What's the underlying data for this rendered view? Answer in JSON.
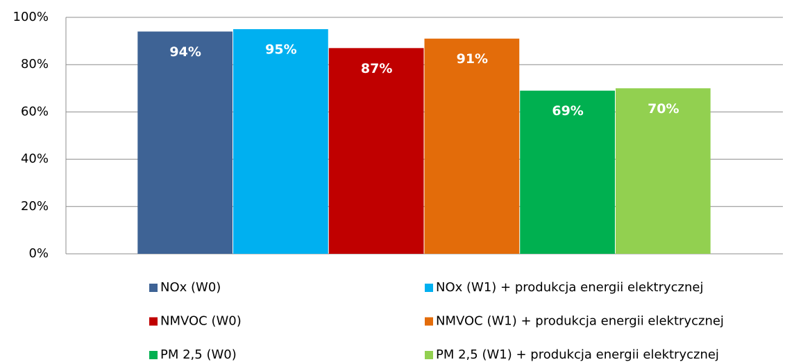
{
  "chart_data": {
    "type": "bar",
    "categories": [
      null
    ],
    "series": [
      {
        "name": "NOx (W0)",
        "color": "#3e6395",
        "values": [
          94
        ],
        "value_labels": [
          "94%"
        ]
      },
      {
        "name": "NOx (W1) + produkcja energii elektrycznej",
        "color": "#00b0f0",
        "values": [
          95
        ],
        "value_labels": [
          "95%"
        ]
      },
      {
        "name": "NMVOC (W0)",
        "color": "#c00000",
        "values": [
          87
        ],
        "value_labels": [
          "87%"
        ]
      },
      {
        "name": "NMVOC (W1) + produkcja energii elektrycznej",
        "color": "#e36c0a",
        "values": [
          91
        ],
        "value_labels": [
          "91%"
        ]
      },
      {
        "name": "PM 2,5 (W0)",
        "color": "#00b050",
        "values": [
          69
        ],
        "value_labels": [
          "69%"
        ]
      },
      {
        "name": "PM 2,5 (W1) + produkcja energii elektrycznej",
        "color": "#92d050",
        "values": [
          70
        ],
        "value_labels": [
          "70%"
        ]
      }
    ],
    "ylim": [
      0,
      100
    ],
    "yticks": [
      {
        "value": 0,
        "label": "0%"
      },
      {
        "value": 20,
        "label": "20%"
      },
      {
        "value": 40,
        "label": "40%"
      },
      {
        "value": 60,
        "label": "60%"
      },
      {
        "value": 80,
        "label": "80%"
      },
      {
        "value": 100,
        "label": "100%"
      }
    ],
    "grid": true,
    "legend": "bottom"
  }
}
